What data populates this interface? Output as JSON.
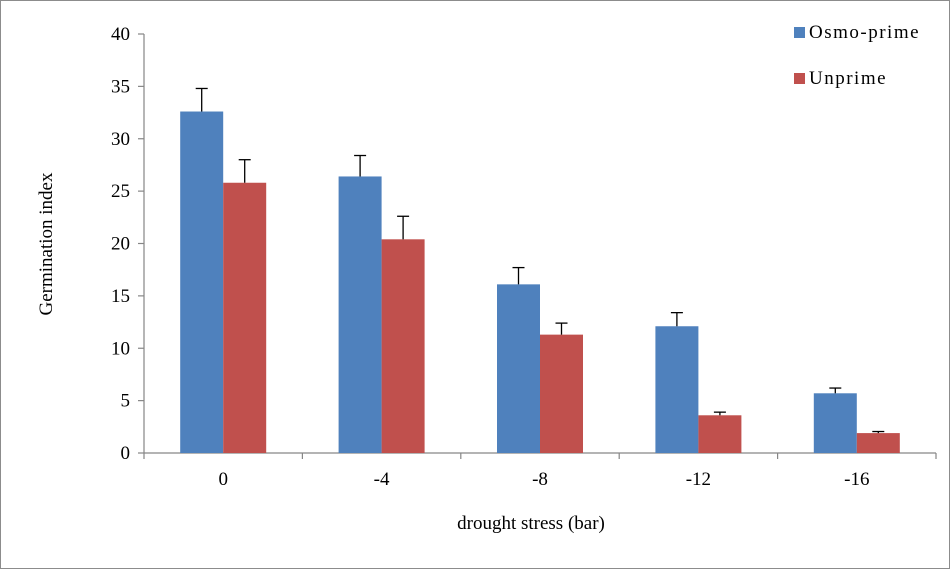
{
  "chart_data": {
    "type": "bar",
    "categories": [
      "0",
      "-4",
      "-8",
      "-12",
      "-16"
    ],
    "series": [
      {
        "name": "Osmo-prime",
        "color": "#4f81bd",
        "values": [
          32.6,
          26.4,
          16.1,
          12.1,
          5.7
        ],
        "error": [
          2.2,
          2.0,
          1.6,
          1.3,
          0.5
        ]
      },
      {
        "name": "Unprime",
        "color": "#c0504d",
        "values": [
          25.8,
          20.4,
          11.3,
          3.6,
          1.9
        ],
        "error": [
          2.2,
          2.2,
          1.1,
          0.3,
          0.15
        ]
      }
    ],
    "xlabel": "drought stress (bar)",
    "ylabel": "Germination  index",
    "ylim": [
      0,
      40
    ],
    "yticks": [
      "0",
      "5",
      "10",
      "15",
      "20",
      "25",
      "30",
      "35",
      "40"
    ],
    "grid": false,
    "legend_position": "top-right"
  }
}
